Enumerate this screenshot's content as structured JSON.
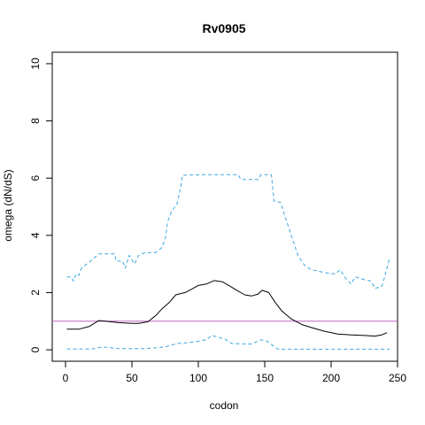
{
  "chart_data": {
    "type": "line",
    "title": "Rv0905",
    "xlabel": "codon",
    "ylabel": "omega (dN/dS)",
    "xlim": [
      -10,
      250
    ],
    "ylim": [
      -0.4,
      10.4
    ],
    "x_ticks": [
      0,
      50,
      100,
      150,
      200,
      250
    ],
    "y_ticks": [
      0,
      2,
      4,
      6,
      8,
      10
    ],
    "grid": false,
    "reference_line": {
      "y": 1,
      "color": "#c266c2"
    },
    "series": [
      {
        "role": "estimate",
        "color": "#000000",
        "dash": "solid",
        "points": [
          [
            1,
            0.72
          ],
          [
            10,
            0.72
          ],
          [
            18,
            0.82
          ],
          [
            25,
            1.02
          ],
          [
            30,
            1.0
          ],
          [
            40,
            0.95
          ],
          [
            50,
            0.92
          ],
          [
            55,
            0.92
          ],
          [
            62,
            0.98
          ],
          [
            68,
            1.2
          ],
          [
            73,
            1.45
          ],
          [
            78,
            1.65
          ],
          [
            83,
            1.92
          ],
          [
            90,
            2.0
          ],
          [
            95,
            2.12
          ],
          [
            100,
            2.25
          ],
          [
            106,
            2.3
          ],
          [
            112,
            2.42
          ],
          [
            118,
            2.38
          ],
          [
            124,
            2.22
          ],
          [
            130,
            2.05
          ],
          [
            135,
            1.92
          ],
          [
            140,
            1.88
          ],
          [
            145,
            1.95
          ],
          [
            148,
            2.08
          ],
          [
            153,
            2.0
          ],
          [
            158,
            1.65
          ],
          [
            163,
            1.35
          ],
          [
            170,
            1.08
          ],
          [
            178,
            0.88
          ],
          [
            185,
            0.78
          ],
          [
            195,
            0.65
          ],
          [
            205,
            0.55
          ],
          [
            215,
            0.52
          ],
          [
            225,
            0.5
          ],
          [
            233,
            0.48
          ],
          [
            238,
            0.52
          ],
          [
            242,
            0.6
          ]
        ]
      },
      {
        "role": "upper",
        "color": "#3da5e0",
        "dash": "dashed",
        "points": [
          [
            1,
            2.55
          ],
          [
            4,
            2.55
          ],
          [
            6,
            2.4
          ],
          [
            8,
            2.65
          ],
          [
            10,
            2.6
          ],
          [
            12,
            2.85
          ],
          [
            16,
            3.0
          ],
          [
            20,
            3.15
          ],
          [
            25,
            3.35
          ],
          [
            37,
            3.35
          ],
          [
            38,
            3.1
          ],
          [
            43,
            3.1
          ],
          [
            45,
            2.85
          ],
          [
            48,
            3.3
          ],
          [
            52,
            3.0
          ],
          [
            55,
            3.3
          ],
          [
            60,
            3.4
          ],
          [
            68,
            3.4
          ],
          [
            72,
            3.55
          ],
          [
            75,
            3.85
          ],
          [
            77,
            4.5
          ],
          [
            80,
            4.85
          ],
          [
            84,
            5.1
          ],
          [
            87,
            5.75
          ],
          [
            88,
            6.1
          ],
          [
            105,
            6.12
          ],
          [
            130,
            6.12
          ],
          [
            132,
            5.95
          ],
          [
            145,
            5.95
          ],
          [
            147,
            6.12
          ],
          [
            155,
            6.12
          ],
          [
            157,
            5.2
          ],
          [
            162,
            5.15
          ],
          [
            165,
            4.7
          ],
          [
            170,
            4.0
          ],
          [
            175,
            3.3
          ],
          [
            180,
            2.95
          ],
          [
            185,
            2.8
          ],
          [
            195,
            2.7
          ],
          [
            203,
            2.65
          ],
          [
            207,
            2.8
          ],
          [
            210,
            2.55
          ],
          [
            215,
            2.3
          ],
          [
            218,
            2.55
          ],
          [
            225,
            2.45
          ],
          [
            230,
            2.4
          ],
          [
            233,
            2.15
          ],
          [
            238,
            2.2
          ],
          [
            240,
            2.5
          ],
          [
            242,
            2.85
          ],
          [
            244,
            3.2
          ]
        ]
      },
      {
        "role": "lower",
        "color": "#3da5e0",
        "dash": "dashed",
        "points": [
          [
            1,
            0.03
          ],
          [
            20,
            0.03
          ],
          [
            28,
            0.1
          ],
          [
            40,
            0.04
          ],
          [
            60,
            0.04
          ],
          [
            75,
            0.1
          ],
          [
            84,
            0.22
          ],
          [
            92,
            0.25
          ],
          [
            100,
            0.3
          ],
          [
            106,
            0.35
          ],
          [
            110,
            0.5
          ],
          [
            114,
            0.45
          ],
          [
            120,
            0.38
          ],
          [
            125,
            0.22
          ],
          [
            140,
            0.2
          ],
          [
            147,
            0.35
          ],
          [
            152,
            0.3
          ],
          [
            156,
            0.15
          ],
          [
            160,
            0.02
          ],
          [
            244,
            0.02
          ]
        ]
      }
    ]
  }
}
